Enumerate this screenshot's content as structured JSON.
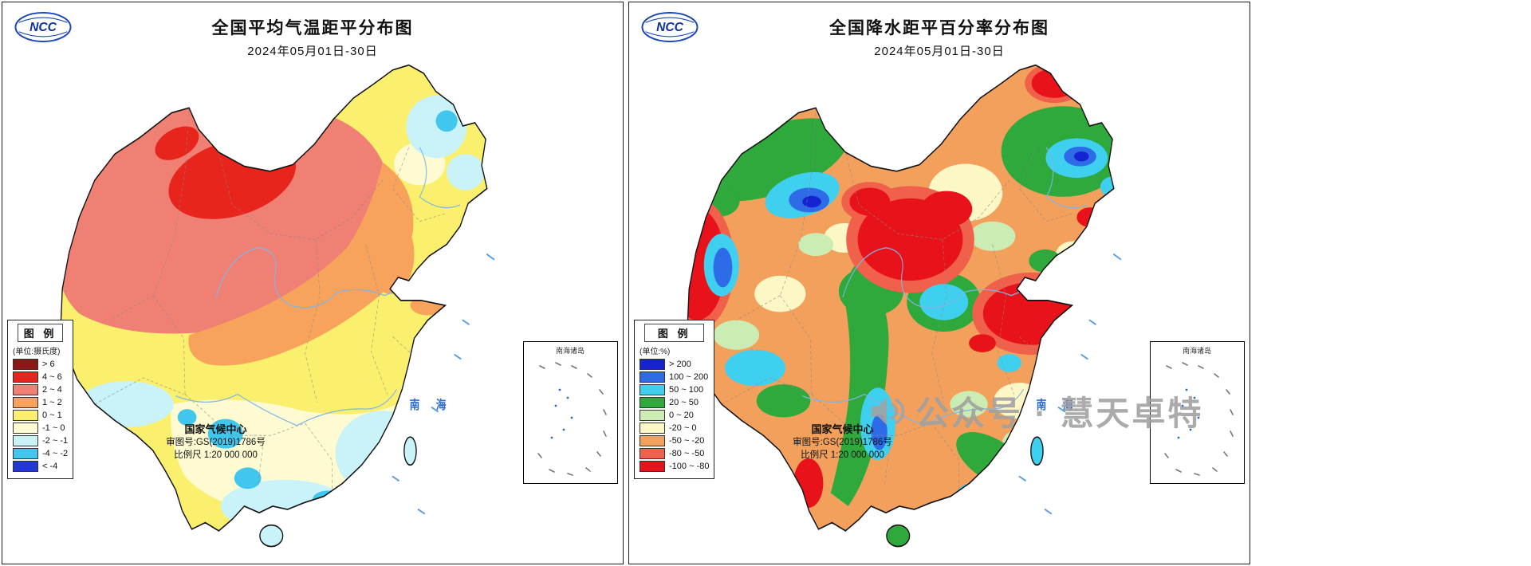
{
  "logo": {
    "text": "NCC"
  },
  "watermark": {
    "text": "公众号 · 慧天卓特"
  },
  "maps": [
    {
      "title": "全国平均气温距平分布图",
      "date": "2024年05月01日-30日",
      "legend": {
        "title": "图 例",
        "unit": "(单位:摄氏度)",
        "items": [
          {
            "label": "> 6",
            "color": "#8C1717"
          },
          {
            "label": "4 ~ 6",
            "color": "#E8251C"
          },
          {
            "label": "2 ~ 4",
            "color": "#F08073"
          },
          {
            "label": "1 ~ 2",
            "color": "#F7A35C"
          },
          {
            "label": "0 ~ 1",
            "color": "#FBF06D"
          },
          {
            "label": "-1 ~ 0",
            "color": "#FEFBD2"
          },
          {
            "label": "-2 ~ -1",
            "color": "#C9F3F8"
          },
          {
            "label": "-4 ~ -2",
            "color": "#41C7EE"
          },
          {
            "label": "< -4",
            "color": "#2438D9"
          }
        ]
      },
      "sea_label": "南 海",
      "inset_label": "南海诸岛",
      "attribution": {
        "source": "国家气候中心",
        "license": "审图号:GS(2019)1786号",
        "scale": "比例尺 1:20 000 000"
      }
    },
    {
      "title": "全国降水距平百分率分布图",
      "date": "2024年05月01日-30日",
      "legend": {
        "title": "图 例",
        "unit": "(单位:%)",
        "items": [
          {
            "label": "> 200",
            "color": "#1523D0"
          },
          {
            "label": "100 ~ 200",
            "color": "#2E6BE6"
          },
          {
            "label": "50 ~ 100",
            "color": "#3FD0F0"
          },
          {
            "label": "20 ~ 50",
            "color": "#2FA83C"
          },
          {
            "label": "0 ~ 20",
            "color": "#CBEDB4"
          },
          {
            "label": "-20 ~ 0",
            "color": "#FDF7C5"
          },
          {
            "label": "-50 ~ -20",
            "color": "#F2A05B"
          },
          {
            "label": "-80 ~ -50",
            "color": "#F0604A"
          },
          {
            "label": "-100 ~ -80",
            "color": "#E8131A"
          }
        ]
      },
      "sea_label": "南 海",
      "inset_label": "南海诸岛",
      "attribution": {
        "source": "国家气候中心",
        "license": "审图号:GS(2019)1786号",
        "scale": "比例尺 1:20 000 000"
      }
    }
  ]
}
